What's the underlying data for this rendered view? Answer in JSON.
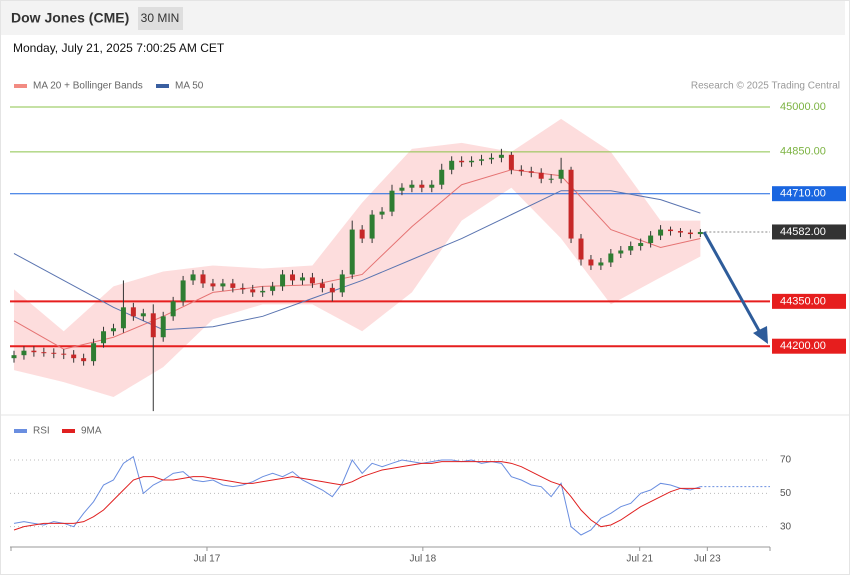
{
  "header": {
    "title": "Dow Jones (CME)",
    "interval": "30 MIN",
    "datetime": "Monday, July 21, 2025 7:00:25 AM CET",
    "copyright": "Research © 2025 Trading Central"
  },
  "chart_data": [
    {
      "type": "candlestick",
      "xlim": [
        0,
        76
      ],
      "ylim": [
        43980,
        45040
      ],
      "up_color": "#2e7d32",
      "down_color": "#c62828",
      "open": [
        44160,
        44170,
        44185,
        44180,
        44178,
        44175,
        44172,
        44160,
        44150,
        44210,
        44250,
        44260,
        44330,
        44300,
        44310,
        44230,
        44300,
        44350,
        44420,
        44440,
        44410,
        44400,
        44410,
        44395,
        44390,
        44380,
        44385,
        44400,
        44440,
        44420,
        44430,
        44410,
        44395,
        44380,
        44440,
        44590,
        44560,
        44640,
        44650,
        44720,
        44730,
        44740,
        44730,
        44740,
        44790,
        44820,
        44815,
        44820,
        44825,
        44830,
        44840,
        44790,
        44785,
        44780,
        44760,
        44760,
        44790,
        44560,
        44490,
        44470,
        44480,
        44510,
        44520,
        44535,
        44545,
        44570,
        44590,
        44585,
        44580,
        44575
      ],
      "high": [
        44185,
        44200,
        44200,
        44195,
        44193,
        44190,
        44187,
        44175,
        44225,
        44265,
        44275,
        44420,
        44345,
        44325,
        44340,
        44315,
        44365,
        44435,
        44455,
        44455,
        44425,
        44425,
        44425,
        44410,
        44405,
        44400,
        44415,
        44455,
        44455,
        44445,
        44445,
        44425,
        44410,
        44455,
        44620,
        44605,
        44655,
        44665,
        44740,
        44745,
        44755,
        44755,
        44755,
        44810,
        44835,
        44835,
        44835,
        44840,
        44845,
        44860,
        44850,
        44805,
        44800,
        44795,
        44775,
        44830,
        44800,
        44575,
        44505,
        44495,
        44525,
        44535,
        44550,
        44560,
        44585,
        44605,
        44600,
        44595,
        44590,
        44592
      ],
      "low": [
        44145,
        44155,
        44165,
        44165,
        44160,
        44157,
        44145,
        44135,
        44135,
        44195,
        44235,
        44245,
        44285,
        44285,
        43983,
        44215,
        44285,
        44335,
        44405,
        44395,
        44385,
        44385,
        44380,
        44375,
        44365,
        44365,
        44370,
        44385,
        44405,
        44405,
        44395,
        44380,
        44350,
        44365,
        44425,
        44545,
        44545,
        44625,
        44635,
        44705,
        44715,
        44715,
        44715,
        44725,
        44775,
        44800,
        44800,
        44805,
        44810,
        44815,
        44775,
        44770,
        44765,
        44745,
        44745,
        44745,
        44545,
        44470,
        44455,
        44455,
        44465,
        44495,
        44505,
        44520,
        44530,
        44555,
        44570,
        44565,
        44560,
        44565
      ],
      "close": [
        44170,
        44185,
        44180,
        44178,
        44175,
        44172,
        44160,
        44150,
        44210,
        44250,
        44260,
        44330,
        44300,
        44310,
        44230,
        44300,
        44350,
        44420,
        44440,
        44410,
        44400,
        44410,
        44395,
        44390,
        44380,
        44385,
        44400,
        44440,
        44420,
        44430,
        44410,
        44395,
        44380,
        44440,
        44590,
        44560,
        44640,
        44650,
        44720,
        44730,
        44740,
        44730,
        44740,
        44790,
        44820,
        44815,
        44820,
        44825,
        44830,
        44840,
        44790,
        44785,
        44780,
        44760,
        44760,
        44790,
        44560,
        44490,
        44470,
        44480,
        44510,
        44520,
        44535,
        44545,
        44570,
        44590,
        44585,
        44580,
        44575,
        44582
      ],
      "overlay_x": [
        0,
        5,
        10,
        15,
        20,
        25,
        30,
        35,
        40,
        45,
        50,
        55,
        60,
        65,
        69
      ],
      "overlays": [
        {
          "name": "MA 20 + Bollinger Bands",
          "color": "#f28b82",
          "line_color": "#e57373",
          "band_color": "#fdd5d5",
          "values": [
            44285,
            44190,
            44230,
            44300,
            44380,
            44400,
            44405,
            44440,
            44600,
            44740,
            44790,
            44770,
            44590,
            44530,
            44560
          ],
          "upper": [
            44390,
            44250,
            44400,
            44450,
            44470,
            44460,
            44470,
            44680,
            44860,
            44880,
            44850,
            44960,
            44850,
            44620,
            44620
          ],
          "lower": [
            44120,
            44080,
            44030,
            44130,
            44290,
            44340,
            44340,
            44250,
            44380,
            44620,
            44730,
            44560,
            44340,
            44430,
            44500
          ]
        },
        {
          "name": "MA 50",
          "color": "#3a5fa0",
          "line_color": "#5a74b0",
          "values": [
            44510,
            44420,
            44330,
            44255,
            44265,
            44300,
            44360,
            44420,
            44490,
            44560,
            44640,
            44720,
            44720,
            44690,
            44645
          ]
        }
      ],
      "levels": [
        {
          "value": 45000,
          "label": "45000.00",
          "color": "#8bc34a",
          "boxed": false,
          "dotted": false
        },
        {
          "value": 44850,
          "label": "44850.00",
          "color": "#8bc34a",
          "boxed": false,
          "dotted": false
        },
        {
          "value": 44710,
          "label": "44710.00",
          "color": "#1a66e0",
          "boxed": true,
          "dotted": false
        },
        {
          "value": 44582,
          "label": "44582.00",
          "color": "#333333",
          "boxed": true,
          "dotted": true
        },
        {
          "value": 44350,
          "label": "44350.00",
          "color": "#e61e1e",
          "boxed": true,
          "dotted": false
        },
        {
          "value": 44200,
          "label": "44200.00",
          "color": "#e61e1e",
          "boxed": true,
          "dotted": false
        }
      ]
    },
    {
      "type": "line",
      "xlim": [
        0,
        76
      ],
      "ylim": [
        19,
        79
      ],
      "yticks": [
        30,
        50,
        70
      ],
      "xticks": [
        {
          "value": 19.4,
          "label": "Jul 17"
        },
        {
          "value": 41.1,
          "label": "Jul 18"
        },
        {
          "value": 62.9,
          "label": "Jul 21"
        },
        {
          "value": 69.7,
          "label": "Jul 23"
        }
      ],
      "series": [
        {
          "name": "RSI",
          "color": "#6a8ee0",
          "values": [
            32,
            33,
            32,
            31,
            33,
            32,
            30,
            38,
            45,
            55,
            58,
            68,
            72,
            50,
            55,
            58,
            62,
            63,
            58,
            57,
            58,
            55,
            54,
            55,
            57,
            60,
            62,
            60,
            63,
            58,
            55,
            52,
            48,
            56,
            70,
            62,
            68,
            66,
            68,
            70,
            69,
            68,
            69,
            70,
            70,
            69,
            70,
            68,
            69,
            68,
            60,
            58,
            55,
            54,
            48,
            56,
            30,
            25,
            28,
            35,
            38,
            42,
            44,
            50,
            52,
            56,
            55,
            53,
            52,
            54
          ]
        },
        {
          "name": "9MA",
          "color": "#e02020",
          "values": [
            28,
            30,
            31,
            32,
            32,
            32,
            32,
            33,
            36,
            40,
            46,
            52,
            58,
            60,
            60,
            58,
            58,
            59,
            60,
            60,
            59,
            58,
            57,
            56,
            56,
            57,
            58,
            59,
            60,
            59,
            58,
            57,
            56,
            55,
            57,
            60,
            62,
            64,
            65,
            66,
            67,
            68,
            68,
            69,
            69,
            69,
            69,
            69,
            69,
            69,
            68,
            66,
            63,
            60,
            57,
            55,
            48,
            40,
            34,
            30,
            31,
            34,
            38,
            42,
            45,
            48,
            51,
            53,
            53,
            53
          ]
        }
      ]
    }
  ]
}
